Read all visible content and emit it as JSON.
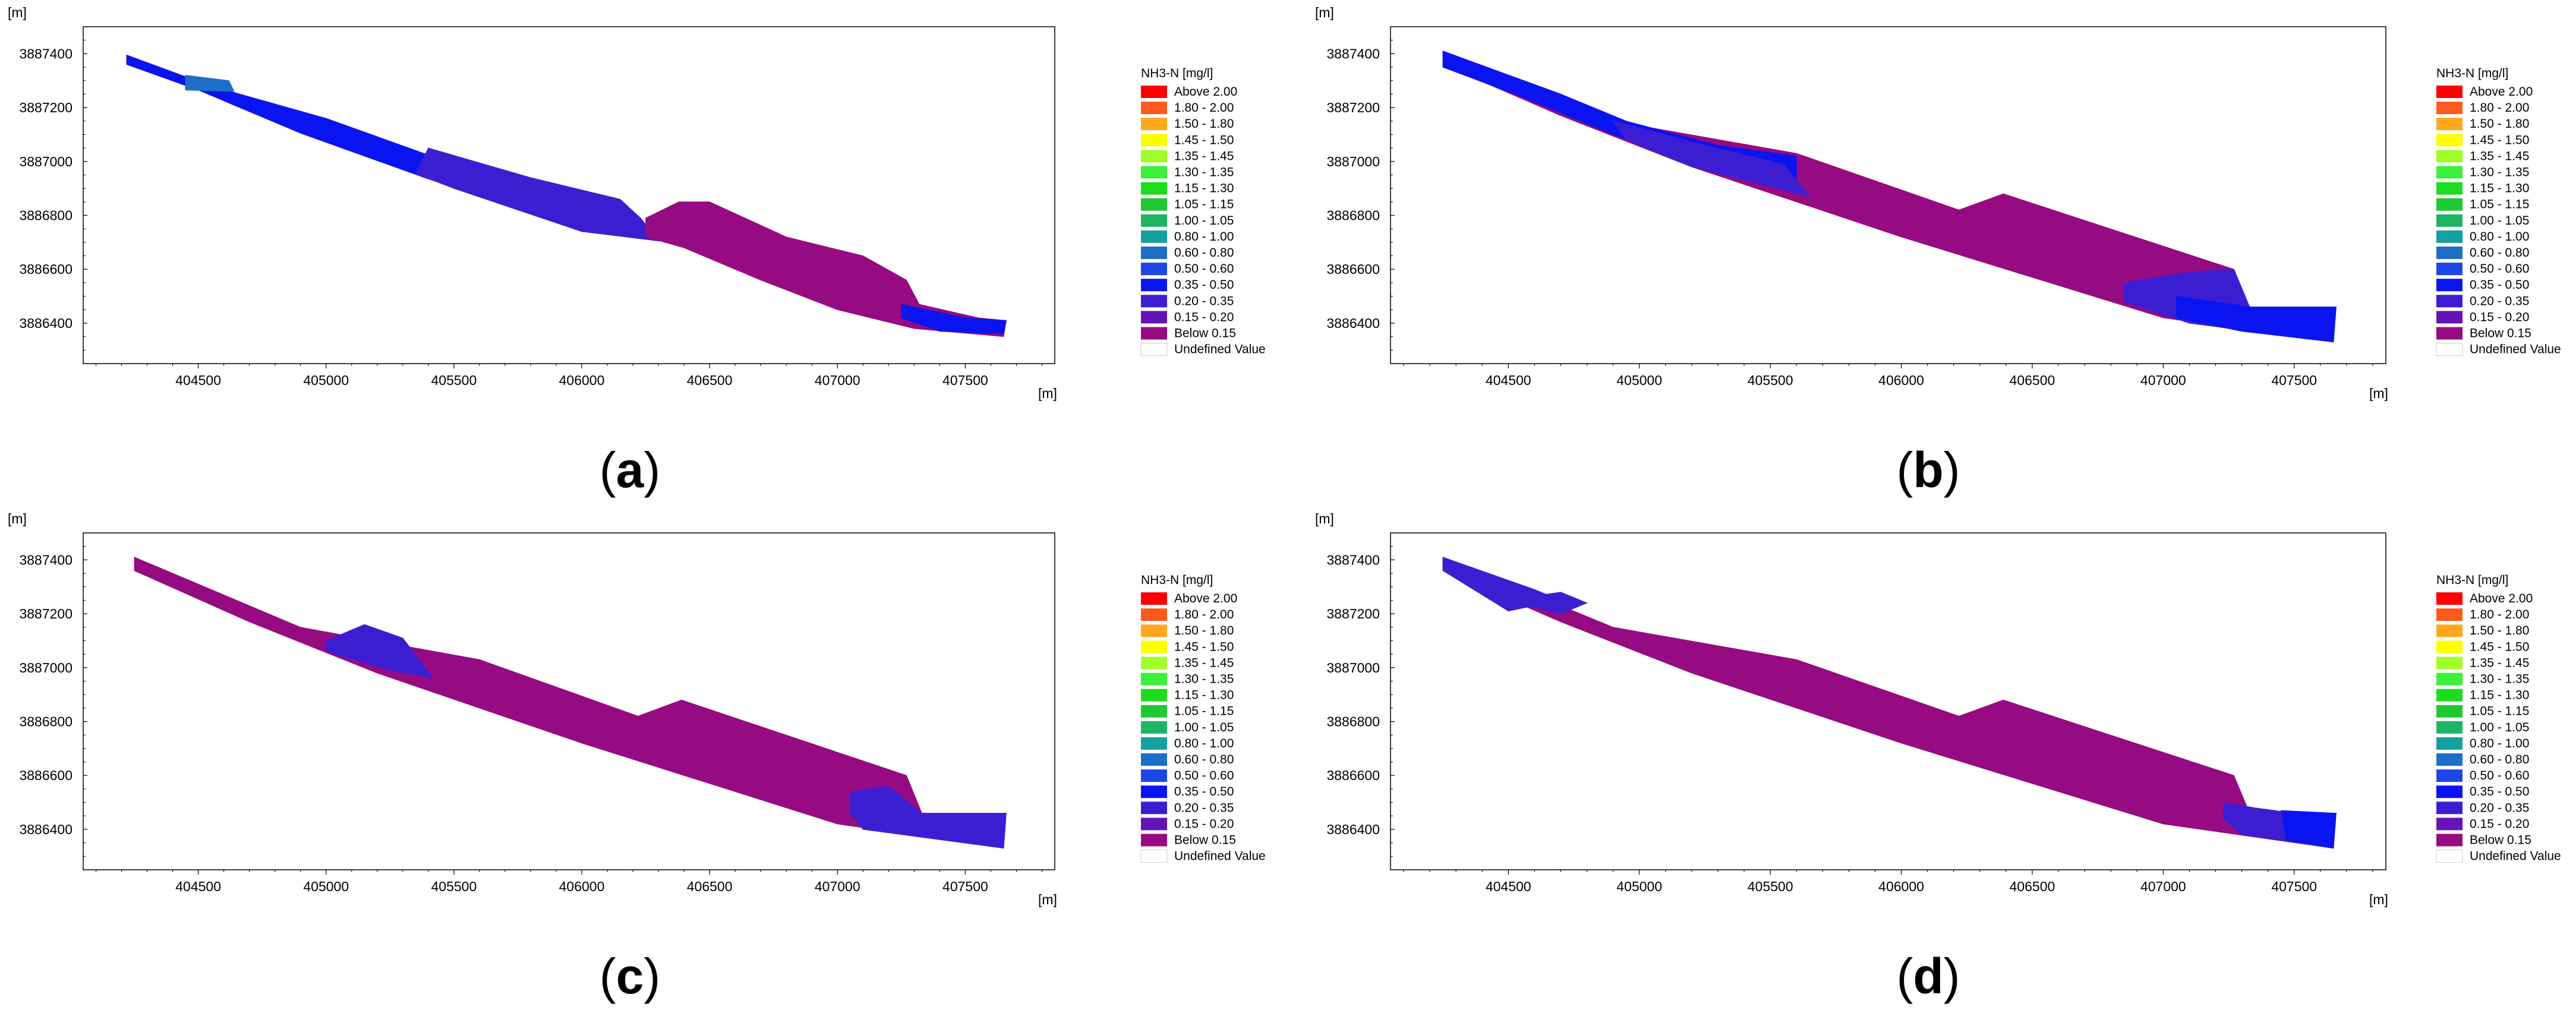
{
  "figure": {
    "colors": {
      "frame": "#000000",
      "undefined_swatch_border": "#cccccc"
    },
    "legend": {
      "title": "NH3-N [mg/l]",
      "classes": [
        {
          "label": "Above 2.00",
          "color": "#ff0000"
        },
        {
          "label": "1.80 - 2.00",
          "color": "#ff5a1e"
        },
        {
          "label": "1.50 - 1.80",
          "color": "#ffa81e"
        },
        {
          "label": "1.45 - 1.50",
          "color": "#ffff00"
        },
        {
          "label": "1.35 - 1.45",
          "color": "#a0ff28"
        },
        {
          "label": "1.30 - 1.35",
          "color": "#3cf03c"
        },
        {
          "label": "1.15 - 1.30",
          "color": "#1edc1e"
        },
        {
          "label": "1.05 - 1.15",
          "color": "#1ec832"
        },
        {
          "label": "1.00 - 1.05",
          "color": "#1eb464"
        },
        {
          "label": "0.80 - 1.00",
          "color": "#14a0a0"
        },
        {
          "label": "0.60 - 0.80",
          "color": "#1e6ec8"
        },
        {
          "label": "0.50 - 0.60",
          "color": "#1e46e6"
        },
        {
          "label": "0.35 - 0.50",
          "color": "#0a14f0"
        },
        {
          "label": "0.20 - 0.35",
          "color": "#3c1ed2"
        },
        {
          "label": "0.15 - 0.20",
          "color": "#6414b4"
        },
        {
          "label": "Below 0.15",
          "color": "#960a82"
        },
        {
          "label": "Undefined Value",
          "color": "#ffffff"
        }
      ]
    }
  },
  "chart_data": [
    {
      "type": "heatmap",
      "panel": "(a)",
      "panel_letter": "a",
      "x_unit": "[m]",
      "y_unit": "[m]",
      "xlim": [
        404050,
        407850
      ],
      "ylim": [
        3886250,
        3887500
      ],
      "xticks": [
        404500,
        405000,
        405500,
        406000,
        406500,
        407000,
        407500
      ],
      "yticks": [
        3886400,
        3886600,
        3886800,
        3887000,
        3887200,
        3887400
      ],
      "regions": [
        {
          "class": "0.35 - 0.50",
          "color": "#0a14f0",
          "polygon": [
            [
              404220,
              3887395
            ],
            [
              404550,
              3887280
            ],
            [
              405000,
              3887160
            ],
            [
              405500,
              3886990
            ],
            [
              406000,
              3886840
            ],
            [
              406230,
              3886790
            ],
            [
              406300,
              3886705
            ],
            [
              405900,
              3886790
            ],
            [
              405400,
              3886935
            ],
            [
              404900,
              3887105
            ],
            [
              404500,
              3887265
            ],
            [
              404220,
              3887360
            ]
          ]
        },
        {
          "class": "0.60 - 0.80",
          "color": "#1e6ec8",
          "polygon": [
            [
              404450,
              3887320
            ],
            [
              404620,
              3887300
            ],
            [
              404640,
              3887260
            ],
            [
              404450,
              3887265
            ]
          ]
        },
        {
          "class": "0.20 - 0.35",
          "color": "#3c1ed2",
          "polygon": [
            [
              405400,
              3887050
            ],
            [
              405800,
              3886940
            ],
            [
              406150,
              3886860
            ],
            [
              406230,
              3886790
            ],
            [
              406300,
              3886705
            ],
            [
              406000,
              3886740
            ],
            [
              405500,
              3886900
            ],
            [
              405350,
              3886955
            ]
          ]
        },
        {
          "class": "Below 0.15",
          "color": "#960a82",
          "polygon": [
            [
              406250,
              3886790
            ],
            [
              406380,
              3886850
            ],
            [
              406500,
              3886850
            ],
            [
              406800,
              3886720
            ],
            [
              407100,
              3886650
            ],
            [
              407270,
              3886560
            ],
            [
              407320,
              3886470
            ],
            [
              407550,
              3886420
            ],
            [
              407660,
              3886410
            ],
            [
              407650,
              3886350
            ],
            [
              407300,
              3886380
            ],
            [
              407000,
              3886450
            ],
            [
              406700,
              3886560
            ],
            [
              406400,
              3886680
            ],
            [
              406250,
              3886720
            ]
          ]
        },
        {
          "class": "0.35 - 0.50",
          "color": "#0a14f0",
          "polygon": [
            [
              407250,
              3886470
            ],
            [
              407500,
              3886420
            ],
            [
              407660,
              3886410
            ],
            [
              407650,
              3886360
            ],
            [
              407400,
              3886370
            ],
            [
              407250,
              3886420
            ]
          ]
        }
      ]
    },
    {
      "type": "heatmap",
      "panel": "(b)",
      "panel_letter": "b",
      "x_unit": "[m]",
      "y_unit": "[m]",
      "xlim": [
        404050,
        407850
      ],
      "ylim": [
        3886250,
        3887500
      ],
      "xticks": [
        404500,
        405000,
        405500,
        406000,
        406500,
        407000,
        407500
      ],
      "yticks": [
        3886400,
        3886600,
        3886800,
        3887000,
        3887200,
        3887400
      ],
      "regions": [
        {
          "class": "Below 0.15",
          "color": "#960a82",
          "polygon": [
            [
              404250,
              3887410
            ],
            [
              404900,
              3887150
            ],
            [
              405600,
              3887030
            ],
            [
              406220,
              3886820
            ],
            [
              406390,
              3886880
            ],
            [
              407270,
              3886600
            ],
            [
              407330,
              3886460
            ],
            [
              407660,
              3886460
            ],
            [
              407650,
              3886330
            ],
            [
              407000,
              3886420
            ],
            [
              406000,
              3886720
            ],
            [
              405200,
              3886980
            ],
            [
              404700,
              3887170
            ],
            [
              404250,
              3887360
            ]
          ]
        },
        {
          "class": "0.35 - 0.50",
          "color": "#0a14f0",
          "polygon": [
            [
              404250,
              3887410
            ],
            [
              404700,
              3887250
            ],
            [
              404950,
              3887150
            ],
            [
              405300,
              3887060
            ],
            [
              405600,
              3887020
            ],
            [
              405600,
              3886900
            ],
            [
              405200,
              3886990
            ],
            [
              404900,
              3887100
            ],
            [
              404550,
              3887240
            ],
            [
              404250,
              3887350
            ]
          ]
        },
        {
          "class": "0.20 - 0.35",
          "color": "#3c1ed2",
          "polygon": [
            [
              404900,
              3887150
            ],
            [
              405250,
              3887060
            ],
            [
              405550,
              3886990
            ],
            [
              405650,
              3886870
            ],
            [
              405200,
              3886980
            ],
            [
              404950,
              3887080
            ]
          ]
        },
        {
          "class": "0.20 - 0.35",
          "color": "#3c1ed2",
          "polygon": [
            [
              406850,
              3886550
            ],
            [
              407100,
              3886590
            ],
            [
              407270,
              3886600
            ],
            [
              407330,
              3886460
            ],
            [
              407660,
              3886460
            ],
            [
              407650,
              3886330
            ],
            [
              407100,
              3886400
            ],
            [
              406850,
              3886480
            ]
          ]
        },
        {
          "class": "0.35 - 0.50",
          "color": "#0a14f0",
          "polygon": [
            [
              407050,
              3886500
            ],
            [
              407330,
              3886460
            ],
            [
              407660,
              3886460
            ],
            [
              407650,
              3886330
            ],
            [
              407300,
              3886370
            ],
            [
              407050,
              3886420
            ]
          ]
        }
      ]
    },
    {
      "type": "heatmap",
      "panel": "(c)",
      "panel_letter": "c",
      "x_unit": "[m]",
      "y_unit": "[m]",
      "xlim": [
        404050,
        407850
      ],
      "ylim": [
        3886250,
        3887500
      ],
      "xticks": [
        404500,
        405000,
        405500,
        406000,
        406500,
        407000,
        407500
      ],
      "yticks": [
        3886400,
        3886600,
        3886800,
        3887000,
        3887200,
        3887400
      ],
      "regions": [
        {
          "class": "Below 0.15",
          "color": "#960a82",
          "polygon": [
            [
              404250,
              3887410
            ],
            [
              404900,
              3887150
            ],
            [
              405600,
              3887030
            ],
            [
              406220,
              3886820
            ],
            [
              406390,
              3886880
            ],
            [
              407270,
              3886600
            ],
            [
              407330,
              3886460
            ],
            [
              407660,
              3886460
            ],
            [
              407650,
              3886330
            ],
            [
              407000,
              3886420
            ],
            [
              406000,
              3886720
            ],
            [
              405200,
              3886980
            ],
            [
              404700,
              3887170
            ],
            [
              404250,
              3887360
            ]
          ]
        },
        {
          "class": "0.20 - 0.35",
          "color": "#3c1ed2",
          "polygon": [
            [
              405000,
              3887100
            ],
            [
              405150,
              3887160
            ],
            [
              405300,
              3887110
            ],
            [
              405420,
              3886960
            ],
            [
              405250,
              3886990
            ],
            [
              405000,
              3887060
            ]
          ]
        },
        {
          "class": "0.20 - 0.35",
          "color": "#3c1ed2",
          "polygon": [
            [
              407050,
              3886540
            ],
            [
              407200,
              3886560
            ],
            [
              407330,
              3886460
            ],
            [
              407660,
              3886460
            ],
            [
              407650,
              3886330
            ],
            [
              407100,
              3886400
            ],
            [
              407050,
              3886460
            ]
          ]
        }
      ]
    },
    {
      "type": "heatmap",
      "panel": "(d)",
      "panel_letter": "d",
      "x_unit": "[m]",
      "y_unit": "[m]",
      "xlim": [
        404050,
        407850
      ],
      "ylim": [
        3886250,
        3887500
      ],
      "xticks": [
        404500,
        405000,
        405500,
        406000,
        406500,
        407000,
        407500
      ],
      "yticks": [
        3886400,
        3886600,
        3886800,
        3887000,
        3887200,
        3887400
      ],
      "regions": [
        {
          "class": "Below 0.15",
          "color": "#960a82",
          "polygon": [
            [
              404250,
              3887410
            ],
            [
              404900,
              3887150
            ],
            [
              405600,
              3887030
            ],
            [
              406220,
              3886820
            ],
            [
              406390,
              3886880
            ],
            [
              407270,
              3886600
            ],
            [
              407330,
              3886460
            ],
            [
              407660,
              3886460
            ],
            [
              407650,
              3886330
            ],
            [
              407000,
              3886420
            ],
            [
              406000,
              3886720
            ],
            [
              405200,
              3886980
            ],
            [
              404700,
              3887170
            ],
            [
              404250,
              3887360
            ]
          ]
        },
        {
          "class": "0.20 - 0.35",
          "color": "#3c1ed2",
          "polygon": [
            [
              404250,
              3887410
            ],
            [
              404600,
              3887290
            ],
            [
              404700,
              3887250
            ],
            [
              404500,
              3887210
            ],
            [
              404250,
              3887360
            ]
          ]
        },
        {
          "class": "0.20 - 0.35",
          "color": "#3c1ed2",
          "polygon": [
            [
              404550,
              3887260
            ],
            [
              404700,
              3887280
            ],
            [
              404800,
              3887240
            ],
            [
              404700,
              3887200
            ],
            [
              404580,
              3887230
            ]
          ]
        },
        {
          "class": "0.20 - 0.35",
          "color": "#3c1ed2",
          "polygon": [
            [
              407230,
              3886500
            ],
            [
              407350,
              3886480
            ],
            [
              407500,
              3886460
            ],
            [
              407660,
              3886460
            ],
            [
              407650,
              3886330
            ],
            [
              407300,
              3886380
            ],
            [
              407230,
              3886440
            ]
          ]
        },
        {
          "class": "0.35 - 0.50",
          "color": "#0a14f0",
          "polygon": [
            [
              407450,
              3886470
            ],
            [
              407660,
              3886460
            ],
            [
              407650,
              3886330
            ],
            [
              407470,
              3886360
            ]
          ]
        }
      ]
    }
  ]
}
